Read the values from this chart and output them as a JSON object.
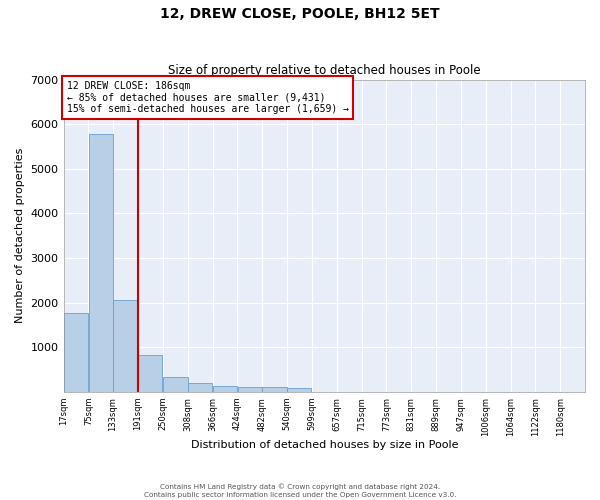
{
  "title": "12, DREW CLOSE, POOLE, BH12 5ET",
  "subtitle": "Size of property relative to detached houses in Poole",
  "xlabel": "Distribution of detached houses by size in Poole",
  "ylabel": "Number of detached properties",
  "bar_color": "#b8cfe8",
  "bar_edge_color": "#6a9fd0",
  "background_color": "#e8eef8",
  "annotation_text": "12 DREW CLOSE: 186sqm\n← 85% of detached houses are smaller (9,431)\n15% of semi-detached houses are larger (1,659) →",
  "vline_color": "#cc0000",
  "vline_x_bin_index": 2,
  "bins_left_edges": [
    17,
    75,
    133,
    191,
    250,
    308,
    366,
    424,
    482,
    540,
    599,
    657,
    715,
    773,
    831,
    889,
    947,
    1006,
    1064,
    1122,
    1180
  ],
  "bar_heights": [
    1780,
    5780,
    2060,
    820,
    340,
    195,
    135,
    115,
    105,
    85,
    0,
    0,
    0,
    0,
    0,
    0,
    0,
    0,
    0,
    0,
    0
  ],
  "ylim": [
    0,
    7000
  ],
  "yticks": [
    0,
    1000,
    2000,
    3000,
    4000,
    5000,
    6000,
    7000
  ],
  "tick_labels": [
    "17sqm",
    "75sqm",
    "133sqm",
    "191sqm",
    "250sqm",
    "308sqm",
    "366sqm",
    "424sqm",
    "482sqm",
    "540sqm",
    "599sqm",
    "657sqm",
    "715sqm",
    "773sqm",
    "831sqm",
    "889sqm",
    "947sqm",
    "1006sqm",
    "1064sqm",
    "1122sqm",
    "1180sqm"
  ],
  "footer_line1": "Contains HM Land Registry data © Crown copyright and database right 2024.",
  "footer_line2": "Contains public sector information licensed under the Open Government Licence v3.0."
}
